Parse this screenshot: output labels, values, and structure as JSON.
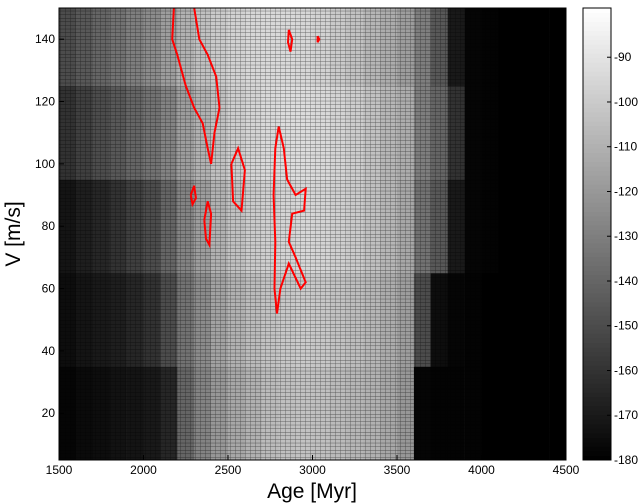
{
  "chart_data": {
    "type": "heatmap",
    "x_label": "Age [Myr]",
    "y_label": "V [m/s]",
    "xlim": [
      1500,
      4500
    ],
    "xticks": [
      1500,
      2000,
      2500,
      3000,
      3500,
      4000,
      4500
    ],
    "ylim": [
      5,
      150
    ],
    "yticks": [
      20,
      40,
      60,
      80,
      100,
      120,
      140
    ],
    "clim": [
      -180,
      -79
    ],
    "cticks": [
      -180,
      -170,
      -160,
      -150,
      -140,
      -130,
      -120,
      -110,
      -100,
      -90
    ],
    "x_bins": [
      1500,
      1600,
      1700,
      1800,
      1900,
      2000,
      2100,
      2200,
      2300,
      2400,
      2500,
      2600,
      2700,
      2800,
      2900,
      3000,
      3100,
      3200,
      3300,
      3400,
      3500,
      3600,
      3700,
      3800,
      3900,
      4000,
      4100,
      4200,
      4300,
      4400,
      4500
    ],
    "y_bins": [
      5,
      35,
      65,
      95,
      125,
      150
    ],
    "z": [
      [
        -178,
        -176,
        -175,
        -173,
        -172,
        -170,
        -165,
        -140,
        -128,
        -120,
        -114,
        -110,
        -106,
        -104,
        -103,
        -104,
        -106,
        -108,
        -110,
        -114,
        -120,
        -178,
        -179,
        -179,
        -179,
        -180,
        -180,
        -180,
        -180,
        -180
      ],
      [
        -175,
        -172,
        -170,
        -168,
        -165,
        -160,
        -150,
        -135,
        -125,
        -116,
        -110,
        -106,
        -103,
        -101,
        -100,
        -101,
        -103,
        -105,
        -108,
        -112,
        -118,
        -150,
        -175,
        -178,
        -179,
        -180,
        -180,
        -180,
        -180,
        -180
      ],
      [
        -172,
        -168,
        -165,
        -160,
        -155,
        -150,
        -140,
        -128,
        -118,
        -110,
        -104,
        -100,
        -98,
        -96,
        -95,
        -96,
        -98,
        -100,
        -104,
        -108,
        -114,
        -135,
        -145,
        -170,
        -178,
        -179,
        -180,
        -180,
        -180,
        -180
      ],
      [
        -160,
        -155,
        -150,
        -145,
        -140,
        -135,
        -128,
        -118,
        -110,
        -104,
        -99,
        -96,
        -94,
        -93,
        -93,
        -94,
        -96,
        -99,
        -103,
        -108,
        -112,
        -130,
        -140,
        -160,
        -178,
        -179,
        -180,
        -180,
        -180,
        -180
      ],
      [
        -150,
        -145,
        -140,
        -135,
        -130,
        -125,
        -118,
        -110,
        -104,
        -100,
        -97,
        -95,
        -94,
        -94,
        -95,
        -97,
        -100,
        -103,
        -108,
        -112,
        -118,
        -130,
        -145,
        -170,
        -178,
        -179,
        -180,
        -180,
        -180,
        -180
      ]
    ],
    "contour_color": "#ff0000",
    "contours": [
      {
        "x": [
          2180,
          2170,
          2200,
          2250,
          2300,
          2350,
          2380,
          2400,
          2420,
          2450,
          2430,
          2380,
          2330,
          2300
        ],
        "y": [
          150,
          140,
          135,
          125,
          118,
          113,
          105,
          100,
          110,
          118,
          128,
          135,
          140,
          150
        ]
      },
      {
        "x": [
          2800,
          2830,
          2850,
          2900,
          2960,
          2950,
          2880,
          2860,
          2900,
          2960,
          2930,
          2860,
          2810,
          2790,
          2775,
          2780,
          2770,
          2780,
          2800
        ],
        "y": [
          112,
          105,
          95,
          90,
          92,
          85,
          84,
          75,
          70,
          62,
          60,
          68,
          60,
          52,
          60,
          75,
          90,
          105,
          112
        ]
      },
      {
        "x": [
          2360,
          2380,
          2400,
          2390,
          2370,
          2360
        ],
        "y": [
          82,
          88,
          84,
          74,
          76,
          82
        ]
      },
      {
        "x": [
          2280,
          2300,
          2310,
          2290,
          2280
        ],
        "y": [
          90,
          93,
          89,
          87,
          90
        ]
      },
      {
        "x": [
          2520,
          2560,
          2600,
          2580,
          2530,
          2520
        ],
        "y": [
          100,
          105,
          98,
          85,
          88,
          100
        ]
      },
      {
        "x": [
          2860,
          2880,
          2870,
          2855,
          2860
        ],
        "y": [
          143,
          140,
          136,
          139,
          143
        ]
      },
      {
        "x": [
          3030,
          3040,
          3030,
          3030
        ],
        "y": [
          141,
          140,
          139,
          141
        ]
      }
    ]
  }
}
